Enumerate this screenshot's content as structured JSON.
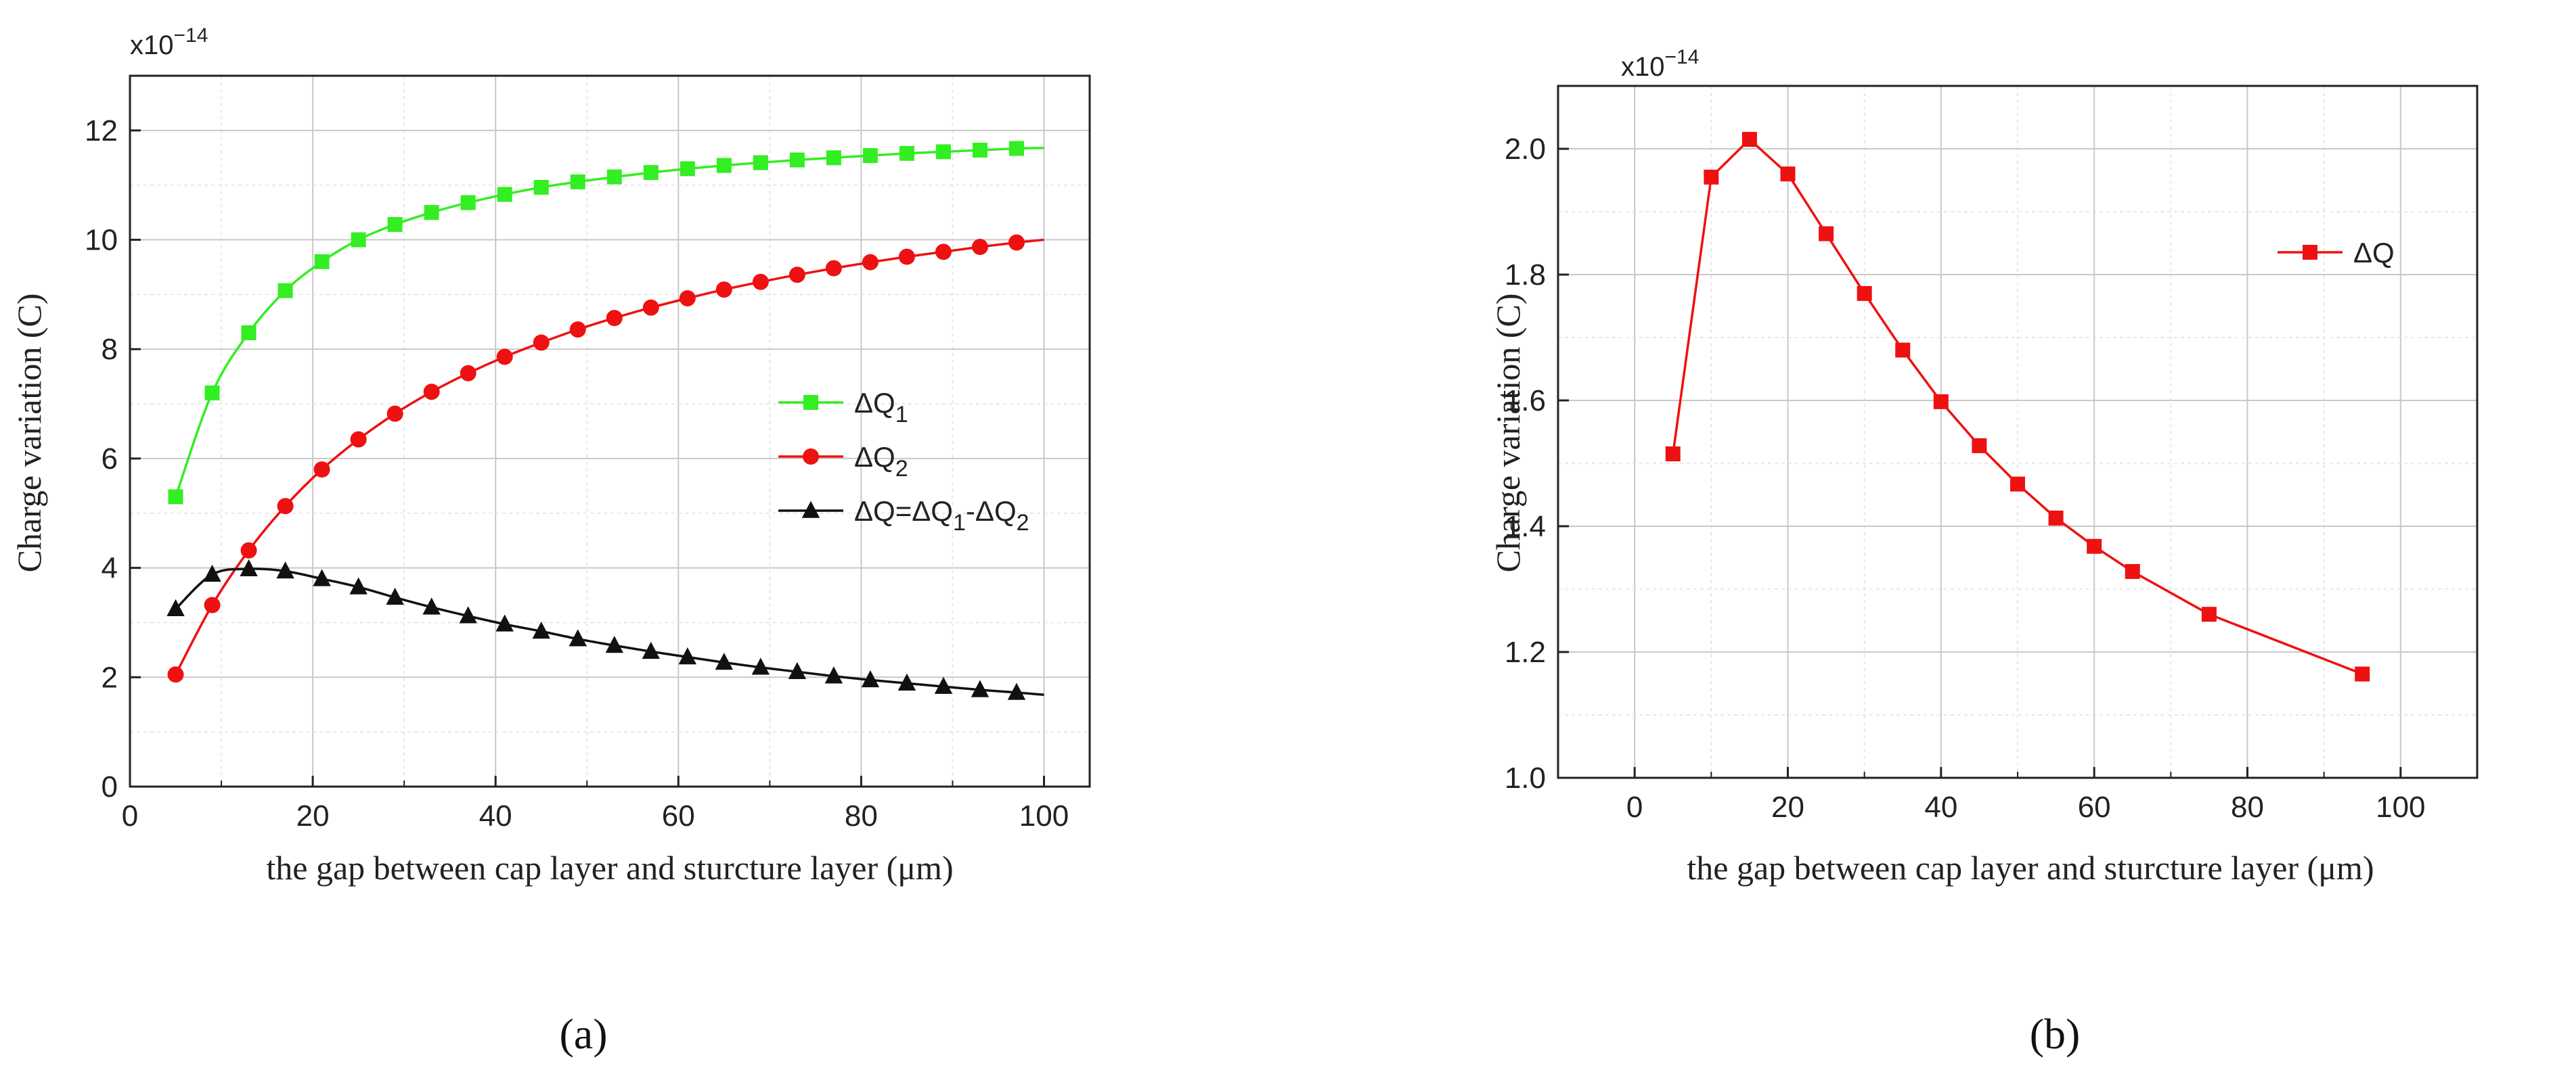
{
  "chart_data": [
    {
      "id": "a",
      "type": "line",
      "caption": "(a)",
      "scale_label": "x10",
      "scale_exponent": "−14",
      "xlabel": "the gap between cap layer and sturcture layer (μm)",
      "ylabel": "Charge variation (C)",
      "xlim": [
        0,
        105
      ],
      "ylim": [
        0,
        13
      ],
      "xticks": [
        0,
        20,
        40,
        60,
        80,
        100
      ],
      "yticks": [
        0,
        2,
        4,
        6,
        8,
        10,
        12
      ],
      "grid": true,
      "legend_position": "center-right",
      "series": [
        {
          "name": "ΔQ1",
          "legend_main": "ΔQ",
          "legend_sub": "1",
          "color": "#33ee22",
          "marker": "square",
          "x": [
            5,
            9,
            13,
            17,
            21,
            25,
            29,
            33,
            37,
            41,
            45,
            49,
            53,
            57,
            61,
            65,
            69,
            73,
            77,
            81,
            85,
            89,
            93,
            97
          ],
          "y": [
            5.3,
            7.2,
            8.3,
            9.07,
            9.6,
            10.0,
            10.28,
            10.5,
            10.68,
            10.83,
            10.96,
            11.06,
            11.15,
            11.23,
            11.3,
            11.36,
            11.41,
            11.46,
            11.5,
            11.54,
            11.58,
            11.61,
            11.64,
            11.67
          ],
          "curve_end": [
            100,
            11.68
          ]
        },
        {
          "name": "ΔQ2",
          "legend_main": "ΔQ",
          "legend_sub": "2",
          "color": "#ee1111",
          "marker": "circle",
          "x": [
            5,
            9,
            13,
            17,
            21,
            25,
            29,
            33,
            37,
            41,
            45,
            49,
            53,
            57,
            61,
            65,
            69,
            73,
            77,
            81,
            85,
            89,
            93,
            97
          ],
          "y": [
            2.05,
            3.32,
            4.32,
            5.13,
            5.8,
            6.35,
            6.82,
            7.22,
            7.56,
            7.86,
            8.12,
            8.36,
            8.57,
            8.76,
            8.93,
            9.09,
            9.23,
            9.36,
            9.48,
            9.59,
            9.69,
            9.78,
            9.87,
            9.95
          ],
          "curve_end": [
            100,
            10.0
          ]
        },
        {
          "name": "ΔQ=ΔQ1-ΔQ2",
          "legend_main": "ΔQ=ΔQ",
          "legend_sub": "1",
          "legend_mid": "-ΔQ",
          "legend_sub2": "2",
          "color": "#111111",
          "marker": "triangle",
          "x": [
            5,
            9,
            13,
            17,
            21,
            25,
            29,
            33,
            37,
            41,
            45,
            49,
            53,
            57,
            61,
            65,
            69,
            73,
            77,
            81,
            85,
            89,
            93,
            97
          ],
          "y": [
            3.25,
            3.88,
            3.98,
            3.94,
            3.8,
            3.65,
            3.46,
            3.28,
            3.12,
            2.97,
            2.84,
            2.7,
            2.58,
            2.47,
            2.37,
            2.27,
            2.18,
            2.1,
            2.02,
            1.95,
            1.89,
            1.83,
            1.77,
            1.72
          ],
          "curve_end": [
            100,
            1.68
          ]
        }
      ]
    },
    {
      "id": "b",
      "type": "line",
      "caption": "(b)",
      "scale_label": "x10",
      "scale_exponent": "−14",
      "xlabel": "the gap between cap layer and sturcture layer (μm)",
      "ylabel": "Charge variation (C)",
      "xlim": [
        -10,
        110
      ],
      "ylim": [
        1.0,
        2.1
      ],
      "xticks": [
        0,
        20,
        40,
        60,
        80,
        100
      ],
      "yticks": [
        1.0,
        1.2,
        1.4,
        1.6,
        1.8,
        2.0
      ],
      "ytick_labels": [
        "1.0",
        "1.2",
        "1.4",
        "1.6",
        "1.8",
        "2.0"
      ],
      "grid": true,
      "legend_position": "top-right",
      "series": [
        {
          "name": "ΔQ",
          "legend_main": "ΔQ",
          "color": "#ee1111",
          "marker": "square",
          "x": [
            5,
            10,
            15,
            20,
            25,
            30,
            35,
            40,
            45,
            50,
            55,
            60,
            65,
            75,
            95
          ],
          "y": [
            1.515,
            1.955,
            2.015,
            1.96,
            1.865,
            1.77,
            1.68,
            1.598,
            1.528,
            1.467,
            1.413,
            1.368,
            1.328,
            1.26,
            1.165
          ]
        }
      ]
    }
  ]
}
